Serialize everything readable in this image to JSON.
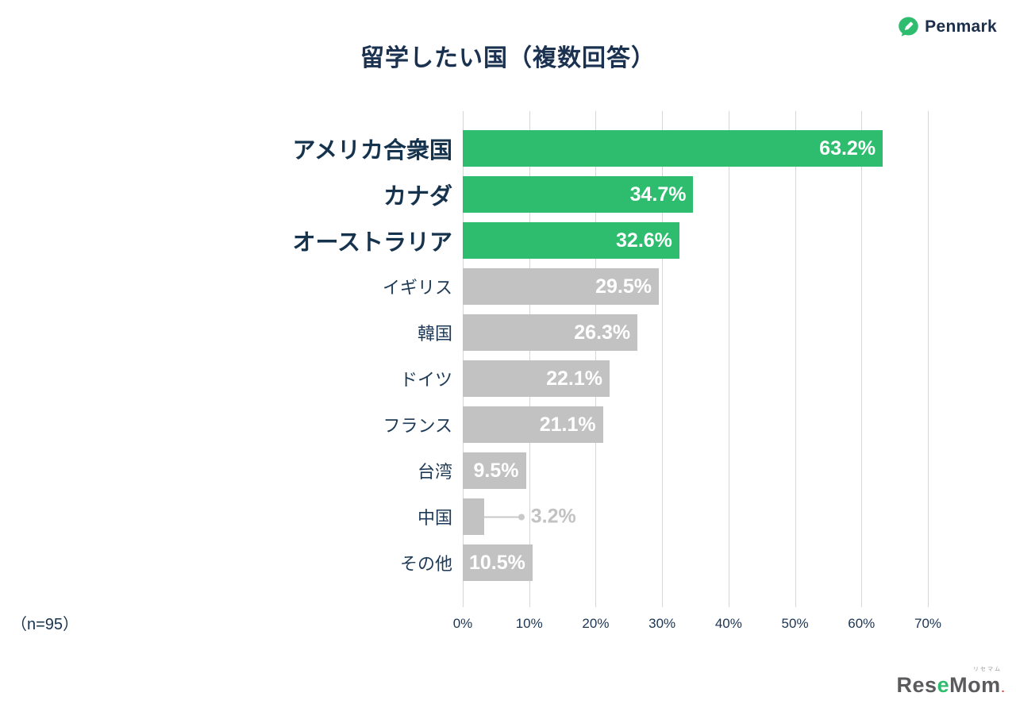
{
  "header": {
    "title": "留学したい国（複数回答）",
    "brand": "Penmark"
  },
  "chart_data": {
    "type": "bar",
    "orientation": "horizontal",
    "title": "留学したい国（複数回答）",
    "sample_size_note": "（n=95）",
    "categories": [
      "アメリカ合衆国",
      "カナダ",
      "オーストラリア",
      "イギリス",
      "韓国",
      "ドイツ",
      "フランス",
      "台湾",
      "中国",
      "その他"
    ],
    "values": [
      63.2,
      34.7,
      32.6,
      29.5,
      26.3,
      22.1,
      21.1,
      9.5,
      3.2,
      10.5
    ],
    "value_labels": [
      "63.2%",
      "34.7%",
      "32.6%",
      "29.5%",
      "26.3%",
      "22.1%",
      "21.1%",
      "9.5%",
      "3.2%",
      "10.5%"
    ],
    "highlight_count": 3,
    "bar_color_highlight": "#2ebd6e",
    "bar_color_default": "#c2c2c2",
    "xlim": [
      0,
      70
    ],
    "x_ticks": [
      "0%",
      "10%",
      "20%",
      "30%",
      "40%",
      "50%",
      "60%",
      "70%"
    ],
    "grid": true,
    "legend": "none",
    "outside_label_indices": [
      8
    ],
    "outside_label_color": "#c2c2c2"
  },
  "footer": {
    "sample_size": "（n=95）",
    "credit": {
      "part1": "Res",
      "accent": "e",
      "part2": "Mom",
      "ruby": "リセマム",
      "dot": "."
    }
  }
}
